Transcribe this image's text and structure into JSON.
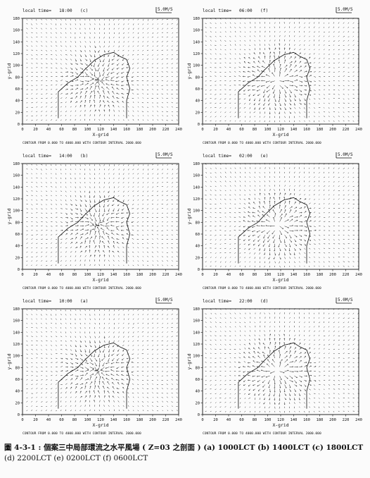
{
  "panels": [
    {
      "id": "c",
      "time_label": "local time=",
      "time": "18:00",
      "tag": "(c)",
      "ref": "5.0M/S",
      "contour": "CONTOUR FROM   0.000  TO  4000.000   WITH CONTOUR INTERVAL   2000.000",
      "xlabel": "X-grid",
      "ylabel": "y-grid"
    },
    {
      "id": "f",
      "time_label": "local time=",
      "time": "06:00",
      "tag": "(f)",
      "ref": "5.0M/S",
      "contour": "CONTOUR FROM   0.000  TO  4000.000   WITH CONTOUR INTERVAL   2000.000",
      "xlabel": "X-grid",
      "ylabel": "y-grid"
    },
    {
      "id": "b",
      "time_label": "local time=",
      "time": "14:00",
      "tag": "(b)",
      "ref": "5.0M/S",
      "contour": "CONTOUR FROM   0.000  TO  4000.000   WITH CONTOUR INTERVAL   2000.000",
      "xlabel": "X-grid",
      "ylabel": "y-grid"
    },
    {
      "id": "e",
      "time_label": "local time=",
      "time": "02:00",
      "tag": "(e)",
      "ref": "5.0M/S",
      "contour": "CONTOUR FROM   0.000  TO  4000.000   WITH CONTOUR INTERVAL   2000.000",
      "xlabel": "X-grid",
      "ylabel": "y-grid"
    },
    {
      "id": "a",
      "time_label": "local time=",
      "time": "10:00",
      "tag": "(a)",
      "ref": "5.0M/S",
      "contour": "CONTOUR FROM   0.000  TO  4000.000   WITH CONTOUR INTERVAL   2000.000",
      "xlabel": "X-grid",
      "ylabel": "y-grid"
    },
    {
      "id": "d",
      "time_label": "local time=",
      "time": "22:00",
      "tag": "(d)",
      "ref": "5.0M/S",
      "contour": "CONTOUR FROM   0.000  TO  4000.000   WITH CONTOUR INTERVAL   2000.000",
      "xlabel": "X-grid",
      "ylabel": "y-grid"
    }
  ],
  "axes": {
    "x_ticks": [
      "0",
      "20",
      "40",
      "60",
      "80",
      "100",
      "120",
      "140",
      "160",
      "180",
      "200",
      "220",
      "240"
    ],
    "y_ticks": [
      "0",
      "20",
      "40",
      "60",
      "80",
      "100",
      "120",
      "140",
      "160",
      "180"
    ]
  },
  "caption": {
    "line1": "圖 4-3-1 : 個案三中局部環流之水平風場 ( Z=03 之剖面 )  (a) 1000LCT  (b) 1400LCT  (c) 1800LCT",
    "line2": "(d) 2200LCT  (e) 0200LCT  (f) 0600LCT"
  }
}
